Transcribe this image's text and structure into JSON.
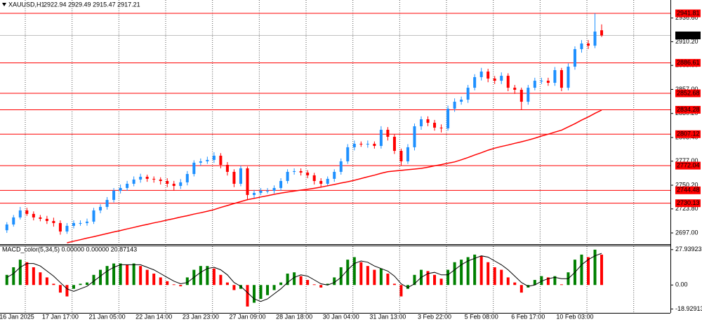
{
  "chart_data": [
    {
      "type": "candlestick",
      "title": "XAUUSD,H1",
      "ohlc_text": "2922.94 2929.49 2915.47 2917.21",
      "categories": [
        null,
        "16 Jan 2025",
        null,
        null,
        null,
        null,
        null,
        null,
        "17 Jan 17:00",
        null,
        null,
        null,
        null,
        null,
        null,
        "21 Jan 05:00",
        null,
        null,
        null,
        null,
        null,
        null,
        "22 Jan 14:00",
        null,
        null,
        null,
        null,
        null,
        null,
        "23 Jan 23:00",
        null,
        null,
        null,
        null,
        null,
        null,
        "27 Jan 09:00",
        null,
        null,
        null,
        null,
        null,
        null,
        "28 Jan 18:00",
        null,
        null,
        null,
        null,
        null,
        null,
        "30 Jan 04:00",
        null,
        null,
        null,
        null,
        null,
        null,
        "31 Jan 13:00",
        null,
        null,
        null,
        null,
        null,
        null,
        "3 Feb 22:00",
        null,
        null,
        null,
        null,
        null,
        null,
        "5 Feb 08:00",
        null,
        null,
        null,
        null,
        null,
        null,
        "6 Feb 17:00",
        null,
        null,
        null,
        null,
        null,
        null,
        "10 Feb 03:00",
        null,
        null,
        null,
        null
      ],
      "open": [
        2700.0,
        2706.4,
        2714.3,
        2722.1,
        2718.2,
        2714.3,
        2712.7,
        2710.3,
        2708.0,
        2698.6,
        2704.9,
        2708.0,
        2708.0,
        2709.6,
        2722.1,
        2726.0,
        2733.8,
        2744.0,
        2747.1,
        2751.8,
        2756.5,
        2759.6,
        2757.3,
        2756.5,
        2754.9,
        2751.8,
        2749.4,
        2753.4,
        2762.7,
        2775.3,
        2776.8,
        2778.4,
        2783.1,
        2772.9,
        2765.1,
        2751.8,
        2769.0,
        2739.3,
        2741.6,
        2744.0,
        2744.0,
        2747.1,
        2754.9,
        2765.1,
        2765.9,
        2764.3,
        2761.2,
        2754.9,
        2751.8,
        2757.3,
        2765.1,
        2776.8,
        2792.5,
        2796.4,
        2795.6,
        2796.4,
        2794.0,
        2812.0,
        2804.2,
        2788.5,
        2776.8,
        2792.5,
        2815.9,
        2823.7,
        2819.8,
        2814.4,
        2813.6,
        2835.5,
        2843.3,
        2845.6,
        2858.9,
        2870.7,
        2876.9,
        2869.1,
        2866.7,
        2872.2,
        2858.9,
        2856.6,
        2843.3,
        2858.9,
        2866.7,
        2866.7,
        2864.4,
        2878.5,
        2858.9,
        2882.4,
        2901.9,
        2908.2,
        2905.8,
        2922.94
      ],
      "high": [
        2709,
        2717,
        2726,
        2725,
        2721,
        2717,
        2716,
        2714,
        2711,
        2708,
        2711,
        2711,
        2713,
        2725,
        2729,
        2737,
        2747,
        2751,
        2755,
        2760,
        2763,
        2762,
        2760,
        2759,
        2758,
        2755,
        2757,
        2766,
        2778,
        2780,
        2782,
        2787,
        2786,
        2776,
        2768,
        2772,
        2771,
        2745,
        2747,
        2747,
        2750,
        2758,
        2768,
        2769,
        2769,
        2767,
        2764,
        2758,
        2760,
        2768,
        2780,
        2796,
        2800,
        2799,
        2800,
        2799,
        2816,
        2815,
        2807,
        2791,
        2796,
        2819,
        2827,
        2827,
        2823,
        2818,
        2839,
        2847,
        2849,
        2862,
        2874,
        2881,
        2880,
        2872,
        2876,
        2875,
        2862,
        2859,
        2862,
        2870,
        2870,
        2870,
        2882,
        2881,
        2886,
        2905,
        2912,
        2912,
        2941.8,
        2929.49
      ],
      "low": [
        2697,
        2704,
        2712,
        2716,
        2711,
        2710,
        2707,
        2704,
        2695,
        2696,
        2702,
        2705,
        2705,
        2707,
        2719,
        2723,
        2731,
        2741,
        2744,
        2749,
        2753,
        2754,
        2753,
        2751,
        2748,
        2744,
        2746,
        2750,
        2760,
        2772,
        2774,
        2775,
        2769,
        2761,
        2748,
        2749,
        2734,
        2736,
        2739,
        2741,
        2741,
        2744,
        2752,
        2762,
        2761,
        2758,
        2751,
        2748,
        2749,
        2754,
        2762,
        2774,
        2789,
        2793,
        2792,
        2791,
        2791,
        2800,
        2785,
        2772,
        2774,
        2789,
        2812,
        2816,
        2811,
        2809,
        2811,
        2832,
        2840,
        2842,
        2856,
        2867,
        2865,
        2863,
        2863,
        2855,
        2852,
        2834,
        2840,
        2856,
        2863,
        2861,
        2861,
        2855,
        2856,
        2879,
        2898,
        2902,
        2903,
        2915.47
      ],
      "close": [
        2706.4,
        2714.3,
        2722.1,
        2718.2,
        2714.3,
        2712.7,
        2710.3,
        2708.0,
        2698.6,
        2704.9,
        2708.0,
        2708.0,
        2709.6,
        2722.1,
        2726.0,
        2733.8,
        2744.0,
        2747.1,
        2751.8,
        2756.5,
        2759.6,
        2757.3,
        2756.5,
        2754.9,
        2751.8,
        2749.4,
        2753.4,
        2762.7,
        2775.3,
        2776.8,
        2778.4,
        2783.1,
        2772.9,
        2765.1,
        2751.8,
        2769.0,
        2739.3,
        2741.6,
        2744.0,
        2744.0,
        2747.1,
        2754.9,
        2765.1,
        2765.9,
        2764.3,
        2761.2,
        2754.9,
        2751.8,
        2757.3,
        2765.1,
        2776.8,
        2792.5,
        2796.4,
        2795.6,
        2796.4,
        2794.0,
        2812.0,
        2804.2,
        2788.5,
        2776.8,
        2792.5,
        2815.9,
        2823.7,
        2819.8,
        2814.4,
        2813.6,
        2835.5,
        2843.3,
        2845.6,
        2858.9,
        2870.7,
        2876.9,
        2869.1,
        2866.7,
        2872.2,
        2858.9,
        2856.6,
        2843.3,
        2858.9,
        2866.7,
        2866.7,
        2864.4,
        2878.5,
        2858.9,
        2882.4,
        2901.9,
        2908.2,
        2905.8,
        2921.5,
        2917.21
      ],
      "up_color": "#1e90ff",
      "down_color": "#ff0000",
      "ma": [
        null,
        null,
        null,
        null,
        null,
        null,
        null,
        null,
        null,
        2686.0,
        2687.8,
        2689.4,
        2691.2,
        2692.8,
        2694.6,
        2696.3,
        2698.1,
        2699.7,
        2701.5,
        2703.1,
        2704.9,
        2706.5,
        2708.2,
        2709.7,
        2711.4,
        2713.0,
        2714.7,
        2716.2,
        2718.0,
        2719.5,
        2721.2,
        2723.0,
        2725.4,
        2727.5,
        2729.8,
        2731.9,
        2734.1,
        2735.5,
        2737.1,
        2738.5,
        2740.0,
        2741.4,
        2742.6,
        2743.6,
        2744.7,
        2745.7,
        2746.8,
        2748.0,
        2749.6,
        2751.0,
        2752.6,
        2754.0,
        2755.7,
        2757.6,
        2759.6,
        2761.4,
        2763.5,
        2765.2,
        2766.0,
        2766.7,
        2767.5,
        2768.2,
        2769.0,
        2770.2,
        2771.8,
        2773.2,
        2774.8,
        2776.2,
        2778.5,
        2781.0,
        2783.9,
        2786.4,
        2789.2,
        2791.5,
        2793.4,
        2795.0,
        2796.9,
        2798.6,
        2800.5,
        2802.6,
        2805.0,
        2807.1,
        2809.4,
        2811.5,
        2815.2,
        2818.8,
        2822.8,
        2826.3,
        2830.3,
        2833.9
      ],
      "ma_color": "#ff0000",
      "levels": [
        2941.81,
        2886.61,
        2852.68,
        2834.28,
        2807.12,
        2772.04,
        2744.48,
        2730.13
      ],
      "level_color": "#ff0000",
      "current_price": 2917.21,
      "ylim": [
        2684.5,
        2956.7
      ],
      "yticks": [
        {
          "value": 2936.6,
          "label": "2936.60"
        },
        {
          "value": 2910.2,
          "label": "2910.20"
        },
        {
          "value": 2883.8,
          "label": "2883.80"
        },
        {
          "value": 2857,
          "label": "2857.00"
        },
        {
          "value": 2830.2,
          "label": "2830.20"
        },
        {
          "value": 2803.4,
          "label": "2803.40"
        },
        {
          "value": 2777,
          "label": "2777.00"
        },
        {
          "value": 2750.2,
          "label": "2750.20"
        },
        {
          "value": 2723.8,
          "label": "2723.80"
        },
        {
          "value": 2697,
          "label": "2697.00"
        }
      ]
    },
    {
      "type": "macd",
      "title": "MACD_color(5,34,5) 0.00000 0.00000 20.87143",
      "values": [
        8,
        14,
        20,
        18,
        14,
        10,
        6,
        1,
        -6,
        -9,
        -3,
        1,
        2,
        8,
        12,
        15,
        17,
        17,
        16,
        17,
        15,
        12,
        9,
        6,
        3,
        0.5,
        -1,
        6,
        12,
        15,
        15,
        13,
        8,
        2,
        -4,
        -3,
        -17,
        -14,
        -11,
        -8,
        -4,
        2,
        9,
        10,
        7,
        4,
        0.5,
        -2,
        1,
        6,
        14,
        20,
        22,
        18,
        15,
        12,
        13,
        9,
        1,
        -9,
        -3,
        8,
        12,
        11,
        8,
        5,
        12,
        18,
        20,
        22,
        24,
        23,
        18,
        14,
        12,
        6,
        2,
        -6,
        -2,
        4,
        7,
        6,
        7,
        0.5,
        10,
        20,
        24,
        22,
        27.9,
        24
      ],
      "signal": [
        6,
        9,
        14,
        17,
        17,
        15,
        11,
        7,
        2,
        -3,
        -5,
        -3,
        -1,
        3,
        7,
        11,
        14,
        16,
        16,
        16,
        16,
        14,
        12,
        9,
        6,
        3,
        1,
        2,
        6,
        10,
        13,
        14,
        12,
        8,
        2,
        -1,
        -6,
        -11,
        -13,
        -11,
        -7,
        -3,
        2,
        6,
        8,
        7,
        4,
        1,
        0,
        2,
        6,
        12,
        17,
        19,
        18,
        15,
        13,
        11,
        7,
        1,
        -2,
        1,
        6,
        9,
        10,
        8,
        8,
        12,
        16,
        19,
        21,
        23,
        22,
        19,
        16,
        12,
        7,
        2,
        -1,
        0,
        3,
        5,
        6,
        5,
        5,
        10,
        16,
        20,
        23,
        25
      ],
      "up_color": "#008000",
      "down_color": "#ff0000",
      "signal_color": "#000000",
      "ylim": [
        -22.0,
        30.6
      ],
      "yticks": [
        27.93923,
        {
          "value": 0,
          "label": "0.00"
        },
        -18.92913
      ]
    }
  ]
}
